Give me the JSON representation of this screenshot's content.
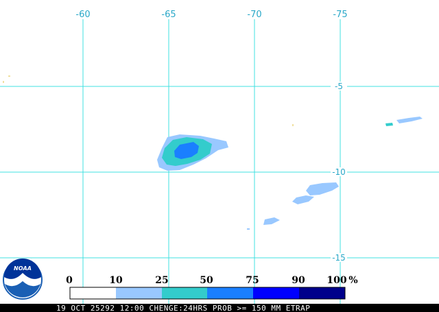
{
  "map": {
    "longitude_labels": [
      "-60",
      "-65",
      "-70",
      "-75"
    ],
    "latitude_labels": [
      "-5",
      "-10",
      "-15"
    ],
    "grid_color": "#40e0e0"
  },
  "legend": {
    "ticks": [
      "0",
      "10",
      "25",
      "50",
      "75",
      "90",
      "100"
    ],
    "unit": "%",
    "bins": [
      {
        "range": "0-10",
        "color": "#ffffff"
      },
      {
        "range": "10-25",
        "color": "#99c8ff"
      },
      {
        "range": "25-50",
        "color": "#33cccc"
      },
      {
        "range": "50-75",
        "color": "#1a7fff"
      },
      {
        "range": "75-90",
        "color": "#0000ff"
      },
      {
        "range": "90-100",
        "color": "#00008b"
      }
    ]
  },
  "logo": {
    "text": "NOAA"
  },
  "caption": {
    "text": "19 OCT 25292 12:00 CHENGE:24HRS PROB >= 150 MM ETRAP"
  }
}
